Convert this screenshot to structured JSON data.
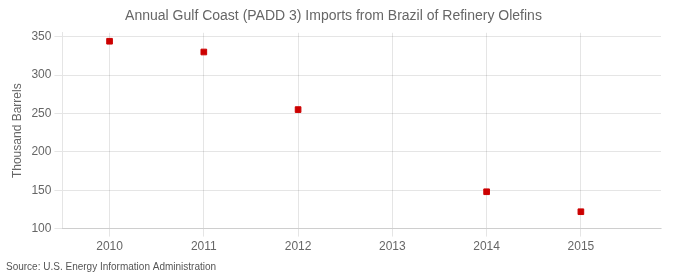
{
  "chart_data": {
    "type": "scatter",
    "title": "Annual Gulf Coast (PADD 3) Imports from Brazil of Refinery Olefins",
    "ylabel": "Thousand Barrels",
    "annotations": [
      "Source: U.S. Energy Information Administration"
    ],
    "x": [
      2010,
      2011,
      2012,
      2014,
      2015
    ],
    "values": [
      344,
      330,
      255,
      148,
      122
    ],
    "color": "#cc0000",
    "marker": "square",
    "xlim": [
      2009.5,
      2015.85
    ],
    "ylim": [
      100,
      355
    ],
    "xticks": [
      2010,
      2011,
      2012,
      2013,
      2014,
      2015
    ],
    "yticks": [
      100,
      150,
      200,
      250,
      300,
      350
    ],
    "grid": true
  }
}
